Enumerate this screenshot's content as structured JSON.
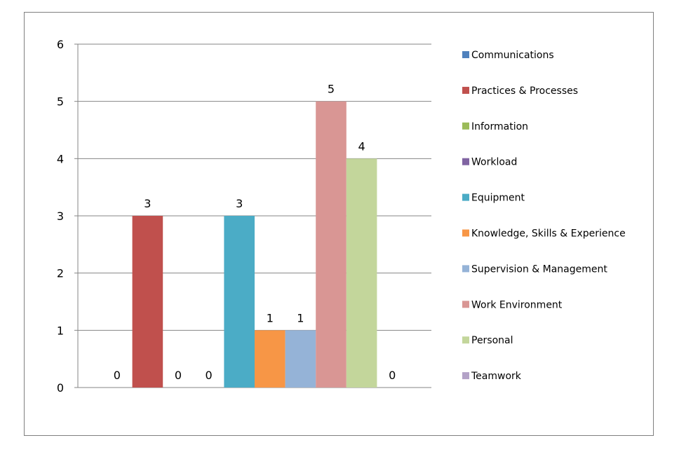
{
  "chart_data": {
    "type": "bar",
    "title": "",
    "xlabel": "",
    "ylabel": "",
    "ylim": [
      0,
      6
    ],
    "y_ticks": [
      0,
      1,
      2,
      3,
      4,
      5,
      6
    ],
    "grid": true,
    "legend_position": "right",
    "data_labels": true,
    "series": [
      {
        "name": "Communications",
        "value": 0,
        "color": "#4F81BD"
      },
      {
        "name": "Practices & Processes",
        "value": 3,
        "color": "#C0504D"
      },
      {
        "name": "Information",
        "value": 0,
        "color": "#9BBB59"
      },
      {
        "name": "Workload",
        "value": 0,
        "color": "#8064A2"
      },
      {
        "name": "Equipment",
        "value": 3,
        "color": "#4BACC6"
      },
      {
        "name": "Knowledge, Skills & Experience",
        "value": 1,
        "color": "#F79646"
      },
      {
        "name": "Supervision & Management",
        "value": 1,
        "color": "#95B3D7"
      },
      {
        "name": "Work Environment",
        "value": 5,
        "color": "#D99694"
      },
      {
        "name": "Personal",
        "value": 4,
        "color": "#C3D69B"
      },
      {
        "name": "Teamwork",
        "value": 0,
        "color": "#B3A2C7"
      }
    ]
  }
}
